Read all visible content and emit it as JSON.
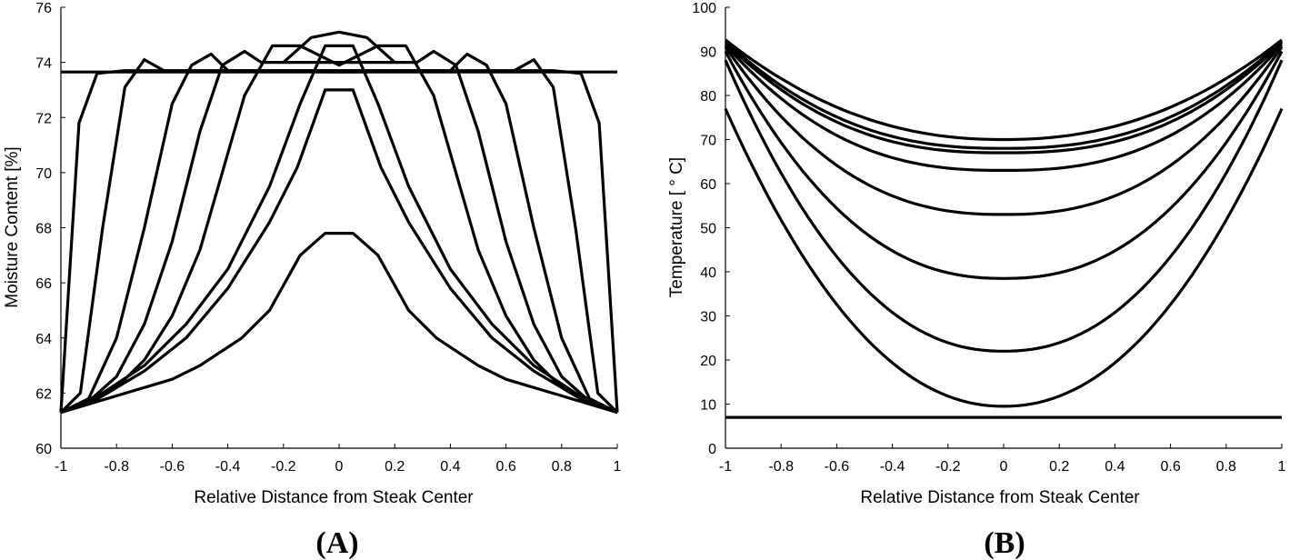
{
  "chart_data": [
    {
      "type": "line",
      "panel_label": "(A)",
      "xlabel": "Relative Distance from Steak Center",
      "ylabel": "Moisture Content [%]",
      "xlim": [
        -1,
        1
      ],
      "ylim": [
        60,
        76
      ],
      "xticks": [
        -1,
        -0.8,
        -0.6,
        -0.4,
        -0.2,
        0,
        0.2,
        0.4,
        0.6,
        0.8,
        1
      ],
      "xtick_labels": [
        "-1",
        "-0.8",
        "-0.6",
        "-0.4",
        "-0.2",
        "0",
        "0.2",
        "0.4",
        "0.6",
        "0.8",
        "1"
      ],
      "yticks": [
        60,
        62,
        64,
        66,
        68,
        70,
        72,
        74,
        76
      ],
      "ytick_labels": [
        "60",
        "62",
        "64",
        "66",
        "68",
        "70",
        "72",
        "74",
        "76"
      ],
      "series": [
        {
          "x": [
            -1,
            1
          ],
          "y": [
            73.65,
            73.65
          ]
        },
        {
          "x": [
            -1,
            -0.935,
            -0.87,
            -0.82,
            -0.77,
            0.77,
            0.82,
            0.87,
            0.935,
            1
          ],
          "y": [
            61.3,
            71.8,
            73.6,
            73.65,
            73.7,
            73.7,
            73.65,
            73.6,
            71.8,
            61.3
          ]
        },
        {
          "x": [
            -1,
            -0.93,
            -0.85,
            -0.77,
            -0.7,
            -0.63,
            0,
            0.63,
            0.7,
            0.77,
            0.85,
            0.93,
            1
          ],
          "y": [
            61.3,
            62.0,
            68.0,
            73.1,
            74.1,
            73.7,
            73.65,
            73.7,
            74.1,
            73.1,
            68.0,
            62.0,
            61.3
          ]
        },
        {
          "x": [
            -1,
            -0.9,
            -0.8,
            -0.7,
            -0.6,
            -0.53,
            -0.46,
            -0.4,
            0.4,
            0.46,
            0.53,
            0.6,
            0.7,
            0.8,
            0.9,
            1
          ],
          "y": [
            61.3,
            61.8,
            64.0,
            68.0,
            72.5,
            73.9,
            74.3,
            73.7,
            73.7,
            74.3,
            73.9,
            72.5,
            68.0,
            64.0,
            61.8,
            61.3
          ]
        },
        {
          "x": [
            -1,
            -0.9,
            -0.8,
            -0.7,
            -0.6,
            -0.5,
            -0.42,
            -0.34,
            -0.28,
            0.28,
            0.34,
            0.42,
            0.5,
            0.6,
            0.7,
            0.8,
            0.9,
            1
          ],
          "y": [
            61.3,
            61.7,
            62.6,
            64.5,
            67.5,
            71.5,
            73.9,
            74.4,
            74.0,
            74.0,
            74.4,
            73.9,
            71.5,
            67.5,
            64.5,
            62.6,
            61.7,
            61.3
          ]
        },
        {
          "x": [
            -1,
            -0.9,
            -0.8,
            -0.7,
            -0.6,
            -0.5,
            -0.42,
            -0.34,
            -0.24,
            -0.14,
            0,
            0.14,
            0.24,
            0.34,
            0.42,
            0.5,
            0.6,
            0.7,
            0.8,
            0.9,
            1
          ],
          "y": [
            61.3,
            61.6,
            62.2,
            63.2,
            64.8,
            67.2,
            70.0,
            72.8,
            74.6,
            74.6,
            73.9,
            74.6,
            74.6,
            72.8,
            70.0,
            67.2,
            64.8,
            63.2,
            62.2,
            61.6,
            61.3
          ]
        },
        {
          "x": [
            -1,
            -0.85,
            -0.7,
            -0.55,
            -0.4,
            -0.25,
            -0.14,
            -0.05,
            0.05,
            0.14,
            0.25,
            0.4,
            0.55,
            0.7,
            0.85,
            1
          ],
          "y": [
            61.3,
            62.0,
            63.0,
            64.5,
            66.5,
            69.5,
            72.5,
            74.6,
            74.6,
            72.5,
            69.5,
            66.5,
            64.5,
            63.0,
            62.0,
            61.3
          ]
        },
        {
          "x": [
            -1,
            -0.85,
            -0.7,
            -0.55,
            -0.4,
            -0.25,
            -0.15,
            -0.05,
            0.05,
            0.15,
            0.25,
            0.4,
            0.55,
            0.7,
            0.85,
            1
          ],
          "y": [
            61.3,
            61.9,
            62.8,
            64.0,
            65.8,
            68.2,
            70.2,
            73.0,
            73.0,
            70.2,
            68.2,
            65.8,
            64.0,
            62.8,
            61.9,
            61.3
          ]
        },
        {
          "x": [
            -1,
            -0.8,
            -0.6,
            -0.5,
            -0.35,
            -0.25,
            -0.14,
            -0.05,
            0.05,
            0.14,
            0.25,
            0.35,
            0.5,
            0.6,
            0.8,
            1
          ],
          "y": [
            61.3,
            61.9,
            62.5,
            63.0,
            64.0,
            65.0,
            67.0,
            67.8,
            67.8,
            67.0,
            65.0,
            64.0,
            63.0,
            62.5,
            61.9,
            61.3
          ]
        },
        {
          "x": [
            -0.2,
            -0.1,
            0,
            0.1,
            0.2
          ],
          "y": [
            74.0,
            74.9,
            75.1,
            74.9,
            74.0
          ]
        }
      ]
    },
    {
      "type": "line",
      "panel_label": "(B)",
      "xlabel": "Relative Distance from Steak Center",
      "ylabel": "Temperature [ ° C]",
      "xlim": [
        -1,
        1
      ],
      "ylim": [
        0,
        100
      ],
      "xticks": [
        -1,
        -0.8,
        -0.6,
        -0.4,
        -0.2,
        0,
        0.2,
        0.4,
        0.6,
        0.8,
        1
      ],
      "xtick_labels": [
        "-1",
        "-0.8",
        "-0.6",
        "-0.4",
        "-0.2",
        "0",
        "0.2",
        "0.4",
        "0.6",
        "0.8",
        "1"
      ],
      "yticks": [
        0,
        10,
        20,
        30,
        40,
        50,
        60,
        70,
        80,
        90,
        100
      ],
      "ytick_labels": [
        "0",
        "10",
        "20",
        "30",
        "40",
        "50",
        "60",
        "70",
        "80",
        "90",
        "100"
      ],
      "series": [
        {
          "x": [
            -1,
            1
          ],
          "y": [
            7,
            7
          ]
        },
        {
          "center": 9.5,
          "edge": 77,
          "exponent": 2.1
        },
        {
          "center": 22,
          "edge": 88,
          "exponent": 2.2
        },
        {
          "center": 38.5,
          "edge": 90,
          "exponent": 2.3
        },
        {
          "center": 53,
          "edge": 91,
          "exponent": 2.4
        },
        {
          "center": 63,
          "edge": 91.5,
          "exponent": 2.5
        },
        {
          "center": 67,
          "edge": 92,
          "exponent": 2.5
        },
        {
          "center": 68,
          "edge": 92.3,
          "exponent": 2.4
        },
        {
          "center": 70,
          "edge": 92.6,
          "exponent": 2.2
        }
      ]
    }
  ]
}
